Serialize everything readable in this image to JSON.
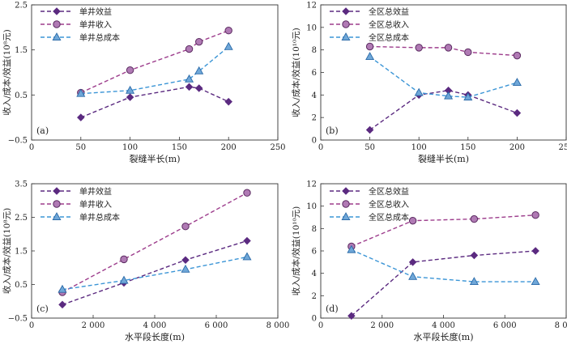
{
  "colors": {
    "profit": "#5b2a80",
    "income": "#9d3d8c",
    "income_fill": "#b07ab4",
    "cost": "#3b95d6",
    "cost_fill": "#6fa7d8"
  },
  "chart_data": [
    {
      "type": "line",
      "panel_label": "(a)",
      "xlabel": "裂缝半长(m)",
      "ylabel": "收入/成本/效益(10⁸元)",
      "xlim": [
        0,
        250
      ],
      "ylim": [
        -0.5,
        2.5
      ],
      "xticks": [
        0,
        50,
        100,
        150,
        200,
        250
      ],
      "xtick_labels": [
        "0",
        "50",
        "100",
        "150",
        "200",
        "250"
      ],
      "yticks": [
        -0.5,
        0.5,
        1.5,
        2.5
      ],
      "ytick_labels": [
        "−0.5",
        "0.5",
        "1.5",
        "2.5"
      ],
      "legend": "top-left",
      "series": [
        {
          "name": "单井效益",
          "key": "profit",
          "marker": "diamond",
          "x": [
            50,
            100,
            160,
            170,
            200
          ],
          "y": [
            0.0,
            0.45,
            0.68,
            0.65,
            0.35
          ]
        },
        {
          "name": "单井收入",
          "key": "income",
          "marker": "circle",
          "x": [
            50,
            100,
            160,
            170,
            200
          ],
          "y": [
            0.55,
            1.05,
            1.52,
            1.68,
            1.93
          ]
        },
        {
          "name": "单井总成本",
          "key": "cost",
          "marker": "triangle",
          "x": [
            50,
            100,
            160,
            170,
            200
          ],
          "y": [
            0.53,
            0.6,
            0.85,
            1.03,
            1.57
          ]
        }
      ]
    },
    {
      "type": "line",
      "panel_label": "(b)",
      "xlabel": "裂缝半长(m)",
      "ylabel": "收入/成本/效益(10¹⁰元)",
      "xlim": [
        0,
        250
      ],
      "ylim": [
        0,
        12
      ],
      "xticks": [
        0,
        50,
        100,
        150,
        200,
        250
      ],
      "xtick_labels": [
        "0",
        "50",
        "100",
        "150",
        "200",
        "250"
      ],
      "yticks": [
        0,
        2,
        4,
        6,
        8,
        10,
        12
      ],
      "ytick_labels": [
        "0",
        "2",
        "4",
        "6",
        "8",
        "10",
        "12"
      ],
      "legend": "top-right",
      "series": [
        {
          "name": "全区总效益",
          "key": "profit",
          "marker": "diamond",
          "x": [
            50,
            100,
            130,
            150,
            200
          ],
          "y": [
            0.9,
            4.0,
            4.4,
            4.0,
            2.4
          ]
        },
        {
          "name": "全区总收入",
          "key": "income",
          "marker": "circle",
          "x": [
            50,
            100,
            130,
            150,
            200
          ],
          "y": [
            8.3,
            8.2,
            8.2,
            7.8,
            7.5
          ]
        },
        {
          "name": "全区总成本",
          "key": "cost",
          "marker": "triangle",
          "x": [
            50,
            100,
            130,
            150,
            200
          ],
          "y": [
            7.4,
            4.2,
            3.9,
            3.8,
            5.1
          ]
        }
      ]
    },
    {
      "type": "line",
      "panel_label": "(c)",
      "xlabel": "水平段长度(m)",
      "ylabel": "收入/成本/效益(10⁸元)",
      "xlim": [
        0,
        8000
      ],
      "ylim": [
        -0.5,
        3.5
      ],
      "xticks": [
        0,
        2000,
        4000,
        6000,
        8000
      ],
      "xtick_labels": [
        "0",
        "2 000",
        "4 000",
        "6 000",
        "8 000"
      ],
      "yticks": [
        -0.5,
        0.5,
        1.5,
        2.5,
        3.5
      ],
      "ytick_labels": [
        "−0.5",
        "0.5",
        "1.5",
        "2.5",
        "3.5"
      ],
      "legend": "top-left",
      "series": [
        {
          "name": "单井效益",
          "key": "profit",
          "marker": "diamond",
          "x": [
            1000,
            3000,
            5000,
            7000
          ],
          "y": [
            -0.1,
            0.55,
            1.23,
            1.8
          ]
        },
        {
          "name": "单井收入",
          "key": "income",
          "marker": "circle",
          "x": [
            1000,
            3000,
            5000,
            7000
          ],
          "y": [
            0.27,
            1.25,
            2.23,
            3.23
          ]
        },
        {
          "name": "单井总成本",
          "key": "cost",
          "marker": "triangle",
          "x": [
            1000,
            3000,
            5000,
            7000
          ],
          "y": [
            0.35,
            0.62,
            0.95,
            1.32
          ]
        }
      ]
    },
    {
      "type": "line",
      "panel_label": "(d)",
      "xlabel": "水平段长度(m)",
      "ylabel": "收入/成本/效益(10¹⁰元)",
      "xlim": [
        0,
        8000
      ],
      "ylim": [
        0,
        12
      ],
      "xticks": [
        0,
        2000,
        4000,
        6000,
        8000
      ],
      "xtick_labels": [
        "0",
        "2 000",
        "4 000",
        "6 000",
        "8 000"
      ],
      "yticks": [
        0,
        2,
        4,
        6,
        8,
        10,
        12
      ],
      "ytick_labels": [
        "0",
        "2",
        "4",
        "6",
        "8",
        "10",
        "12"
      ],
      "legend": "top-left",
      "series": [
        {
          "name": "全区总效益",
          "key": "profit",
          "marker": "diamond",
          "x": [
            1000,
            3000,
            5000,
            7000
          ],
          "y": [
            0.2,
            5.0,
            5.6,
            6.0
          ]
        },
        {
          "name": "全区总收入",
          "key": "income",
          "marker": "circle",
          "x": [
            1000,
            3000,
            5000,
            7000
          ],
          "y": [
            6.4,
            8.7,
            8.85,
            9.2
          ]
        },
        {
          "name": "全区总成本",
          "key": "cost",
          "marker": "triangle",
          "x": [
            1000,
            3000,
            5000,
            7000
          ],
          "y": [
            6.1,
            3.7,
            3.25,
            3.25
          ]
        }
      ]
    }
  ]
}
